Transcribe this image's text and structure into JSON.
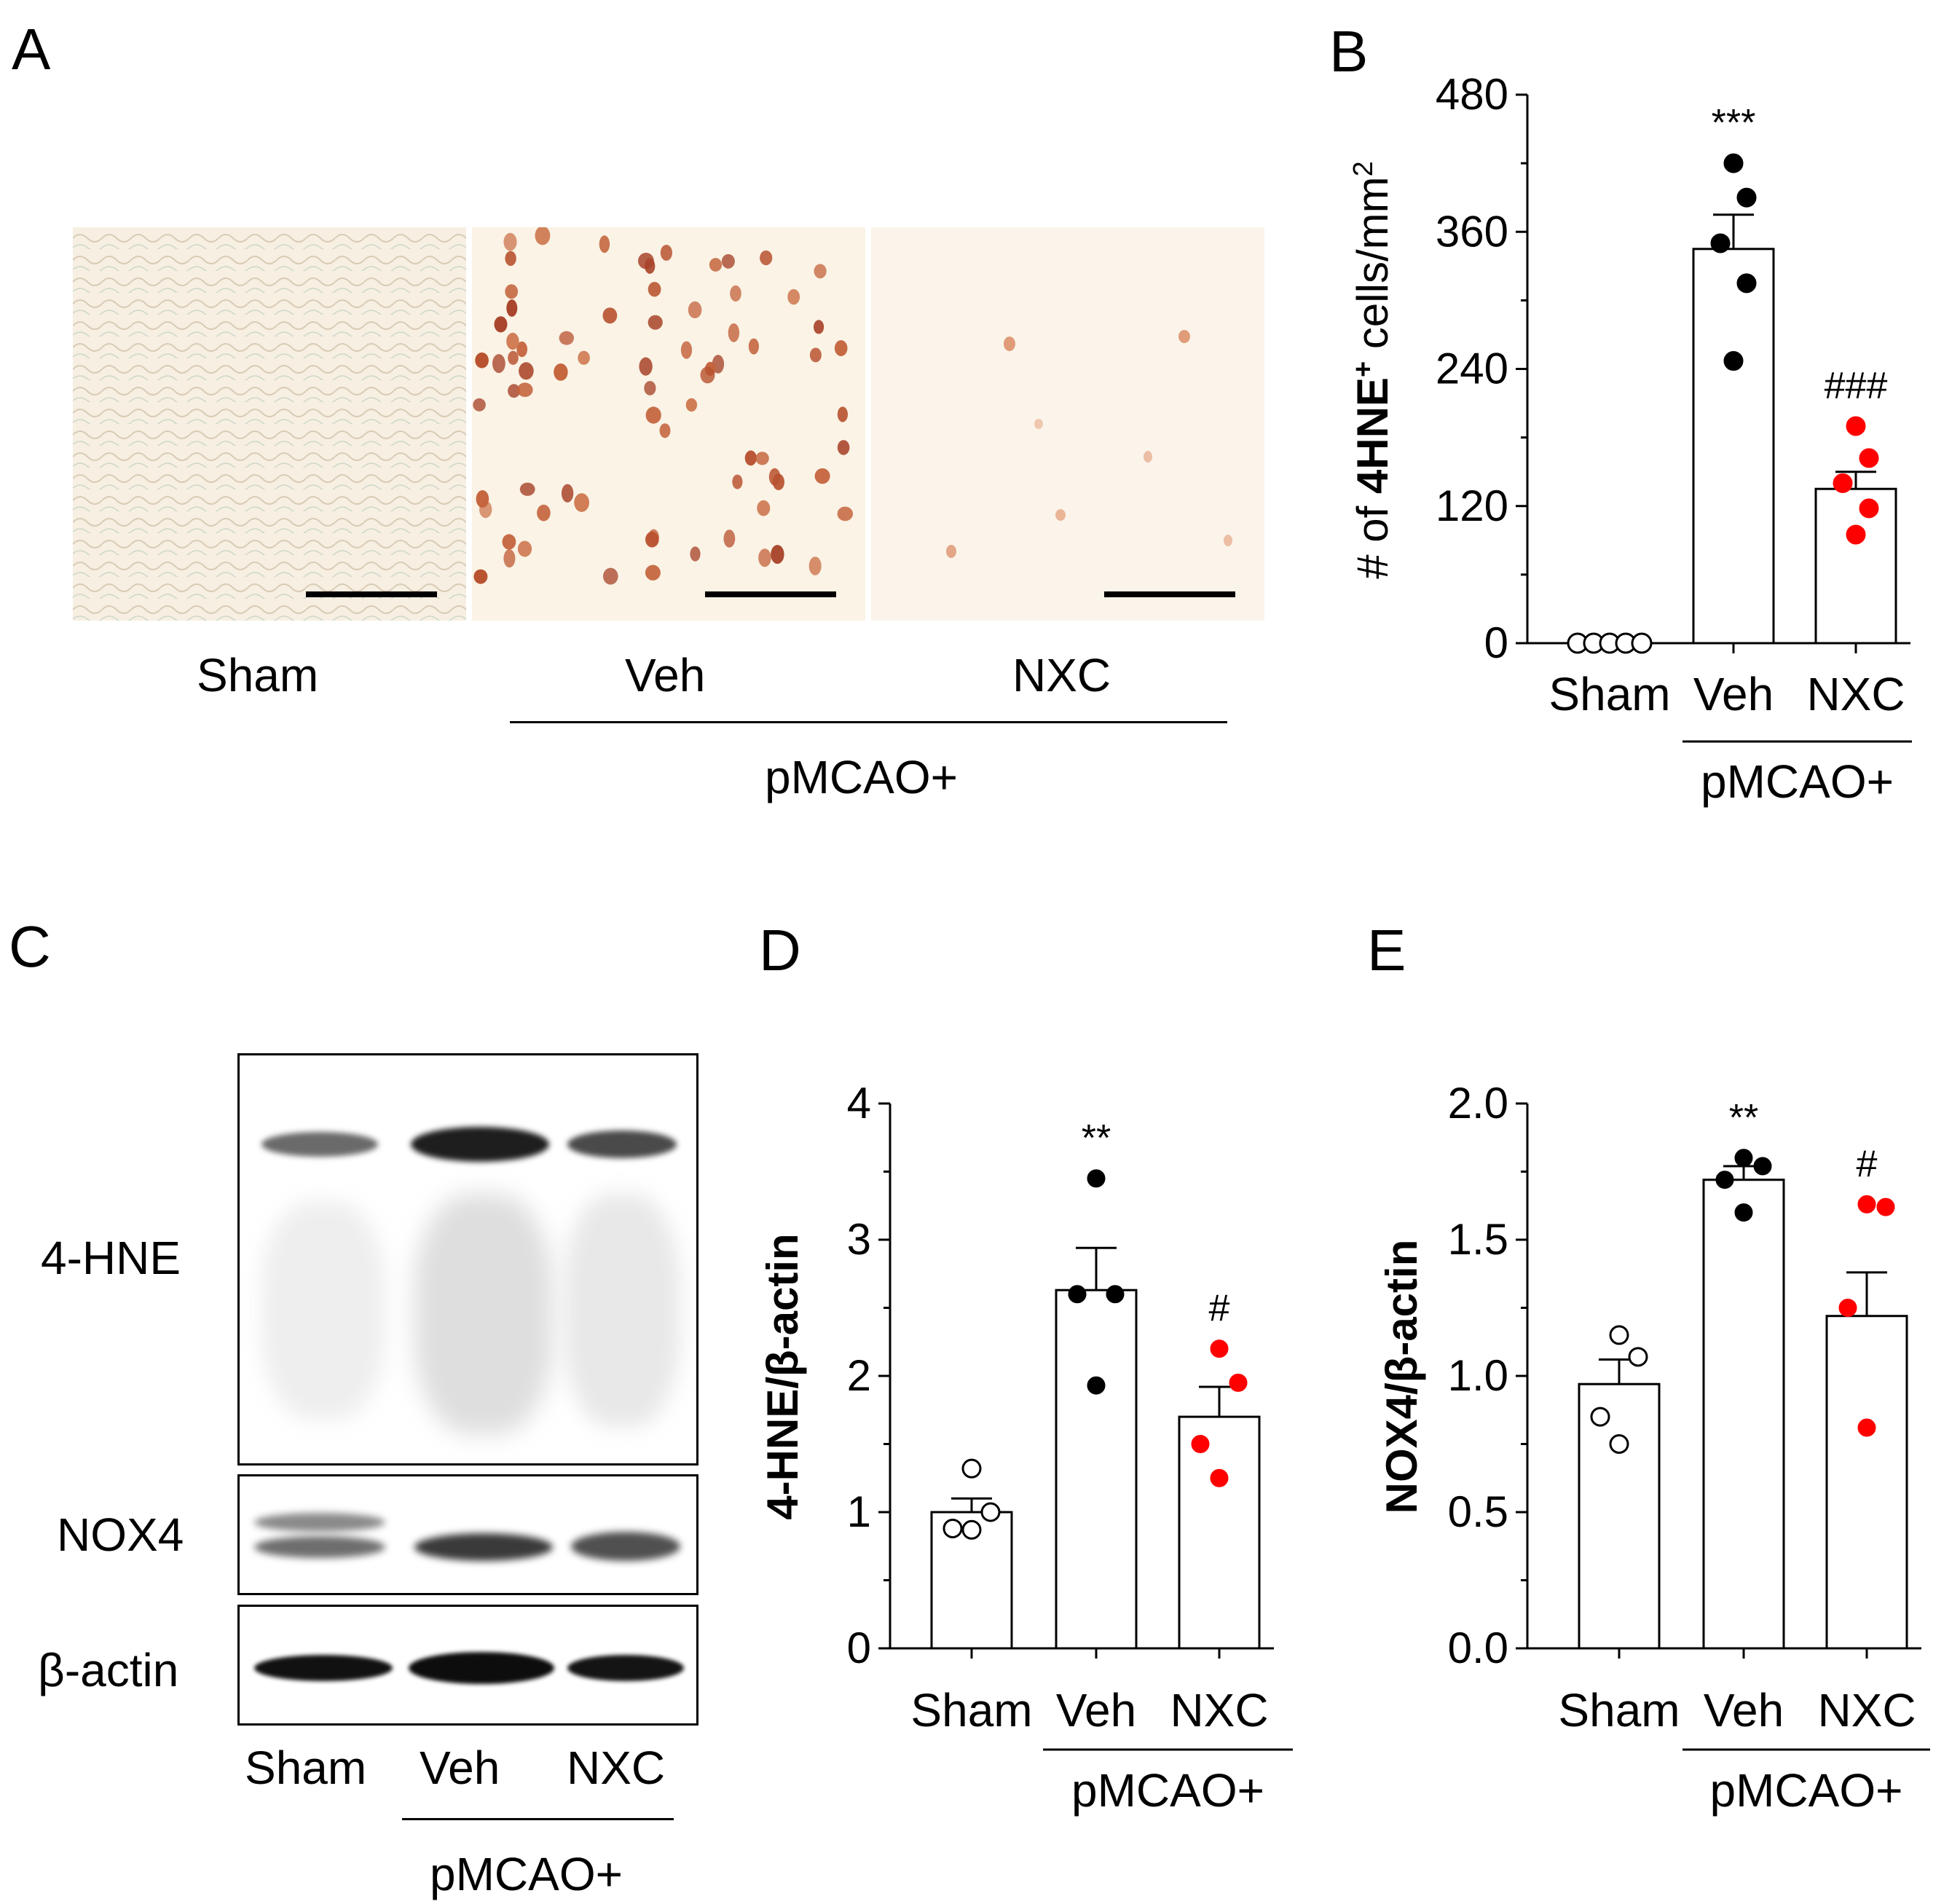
{
  "panels": {
    "A": {
      "letter": "A",
      "images": [
        {
          "label": "Sham"
        },
        {
          "label": "Veh"
        },
        {
          "label": "NXC"
        }
      ],
      "group_label": "pMCAO+"
    },
    "C": {
      "letter": "C",
      "rows": [
        {
          "label": "4-HNE"
        },
        {
          "label": "NOX4"
        },
        {
          "label": "β-actin"
        }
      ],
      "lanes": [
        "Sham",
        "Veh",
        "NXC"
      ],
      "group_label": "pMCAO+"
    }
  },
  "chart_data": [
    {
      "panel": "B",
      "type": "bar",
      "letter": "B",
      "categories": [
        "Sham",
        "Veh",
        "NXC"
      ],
      "group_label": "pMCAO+",
      "ylabel_prefix": "# of ",
      "ylabel_bold": "4HNE",
      "ylabel_sup": "+",
      "ylabel_suffix": " cells/mm",
      "ylabel_sup2": "2",
      "ylim": [
        0,
        480
      ],
      "yticks": [
        0,
        120,
        240,
        360,
        480
      ],
      "ytick_labels": [
        "0",
        "120",
        "240",
        "360",
        "480"
      ],
      "values": [
        2,
        345,
        135
      ],
      "sem": [
        0,
        30,
        15
      ],
      "points": [
        [
          0,
          0,
          0,
          0,
          0
        ],
        [
          420,
          390,
          350,
          315,
          247
        ],
        [
          190,
          162,
          140,
          118,
          95
        ]
      ],
      "annotations": [
        "",
        "***",
        "###"
      ],
      "point_colors": [
        "#ffffff",
        "#000000",
        "#ff0000"
      ]
    },
    {
      "panel": "D",
      "type": "bar",
      "letter": "D",
      "categories": [
        "Sham",
        "Veh",
        "NXC"
      ],
      "group_label": "pMCAO+",
      "ylabel": "4-HNE/β-actin",
      "ylim": [
        0,
        4
      ],
      "yticks": [
        0,
        1,
        2,
        3,
        4
      ],
      "ytick_labels": [
        "0",
        "1",
        "2",
        "3",
        "4"
      ],
      "values": [
        1.0,
        2.63,
        1.7
      ],
      "sem": [
        0.1,
        0.31,
        0.22
      ],
      "points": [
        [
          1.32,
          1.0,
          0.88,
          0.87
        ],
        [
          3.45,
          2.6,
          2.6,
          1.93
        ],
        [
          2.2,
          1.95,
          1.5,
          1.25
        ]
      ],
      "annotations": [
        "",
        "**",
        "#"
      ],
      "point_colors": [
        "#ffffff",
        "#000000",
        "#ff0000"
      ]
    },
    {
      "panel": "E",
      "type": "bar",
      "letter": "E",
      "categories": [
        "Sham",
        "Veh",
        "NXC"
      ],
      "group_label": "pMCAO+",
      "ylabel": "NOX4/β-actin",
      "ylim": [
        0,
        2.0
      ],
      "yticks": [
        0,
        0.5,
        1.0,
        1.5,
        2.0
      ],
      "ytick_labels": [
        "0.0",
        "0.5",
        "1.0",
        "1.5",
        "2.0"
      ],
      "values": [
        0.97,
        1.72,
        1.22
      ],
      "sem": [
        0.09,
        0.05,
        0.16
      ],
      "points": [
        [
          1.15,
          1.07,
          0.85,
          0.75
        ],
        [
          1.8,
          1.77,
          1.72,
          1.6
        ],
        [
          1.63,
          1.62,
          1.25,
          0.81
        ]
      ],
      "annotations": [
        "",
        "**",
        "#"
      ],
      "point_colors": [
        "#ffffff",
        "#000000",
        "#ff0000"
      ]
    }
  ]
}
